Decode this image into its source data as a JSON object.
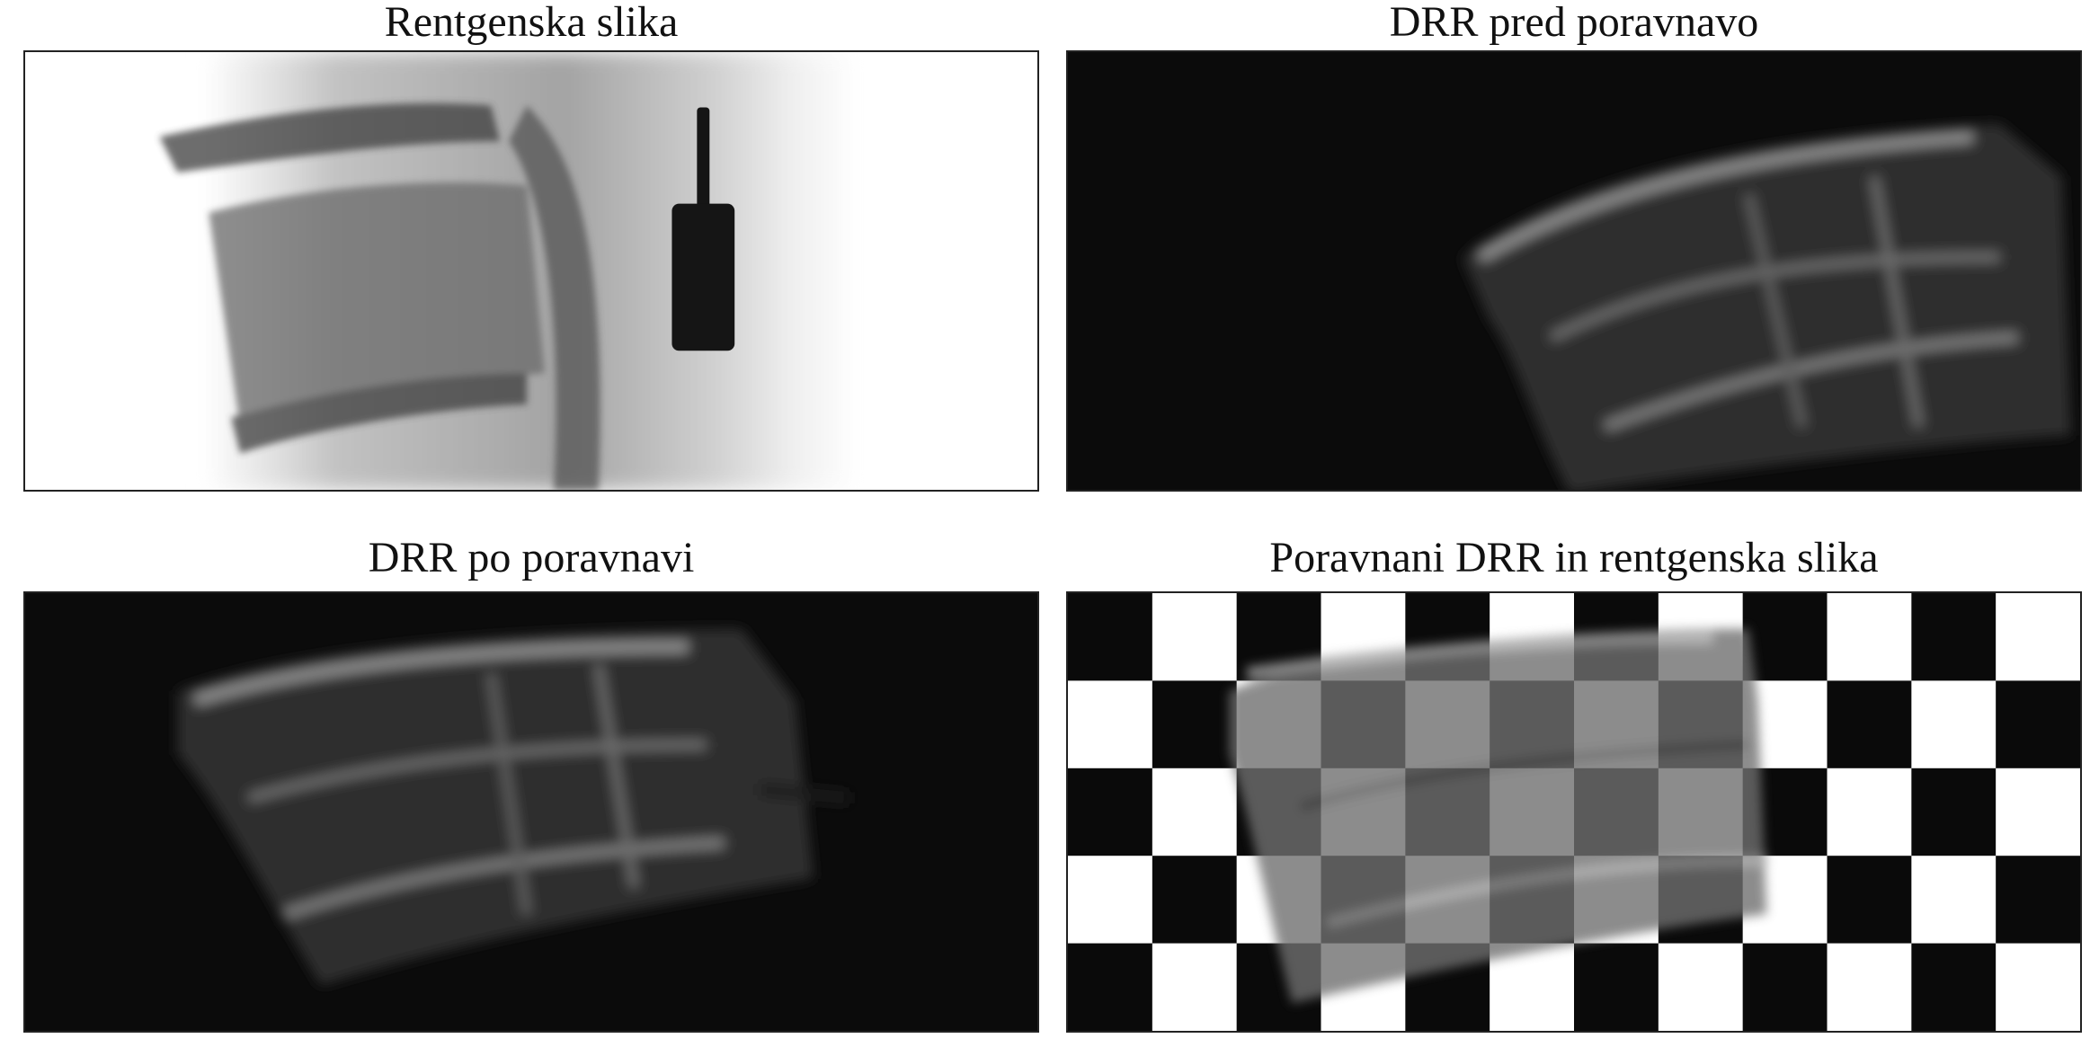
{
  "figure": {
    "panels": [
      {
        "title": "Rentgenska slika"
      },
      {
        "title": "DRR pred poravnavo"
      },
      {
        "title": "DRR po poravnavi"
      },
      {
        "title": "Poravnani DRR in rentgenska slika"
      }
    ],
    "checkerboard": {
      "columns": 12,
      "rows": 5
    },
    "colors": {
      "background": "#ffffff",
      "drr_background": "#0b0b0b",
      "checker_dark": "#0a0a0a",
      "checker_light": "#ffffff"
    }
  }
}
